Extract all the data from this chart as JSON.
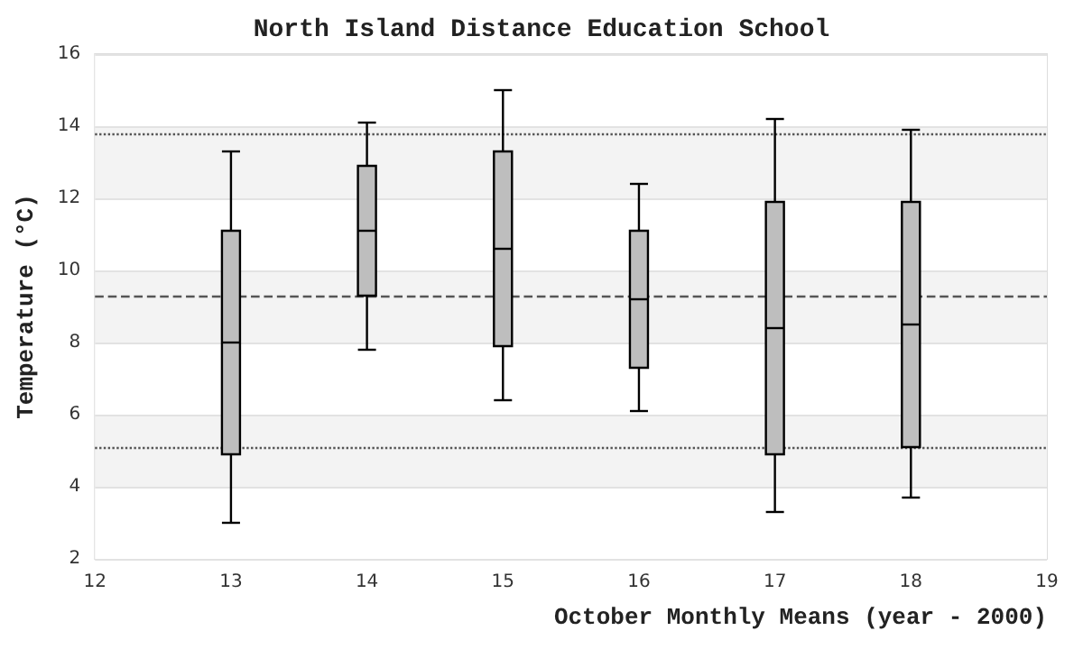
{
  "chart_data": {
    "type": "box",
    "title": "North Island Distance Education School",
    "xlabel": "October Monthly Means (year - 2000)",
    "ylabel": "Temperature (°C)",
    "x": [
      13,
      14,
      15,
      16,
      17,
      18
    ],
    "boxes": [
      {
        "low": 3.0,
        "q1": 4.9,
        "median": 8.0,
        "q3": 11.1,
        "high": 13.3
      },
      {
        "low": 7.8,
        "q1": 9.3,
        "median": 11.1,
        "q3": 12.9,
        "high": 14.1
      },
      {
        "low": 6.4,
        "q1": 7.9,
        "median": 10.6,
        "q3": 13.3,
        "high": 15.0
      },
      {
        "low": 6.1,
        "q1": 7.3,
        "median": 9.2,
        "q3": 11.1,
        "high": 12.4
      },
      {
        "low": 3.3,
        "q1": 4.9,
        "median": 8.4,
        "q3": 11.9,
        "high": 14.2
      },
      {
        "low": 3.7,
        "q1": 5.1,
        "median": 8.5,
        "q3": 11.9,
        "high": 13.9
      }
    ],
    "color": "#bebebe",
    "xlim": [
      12,
      19
    ],
    "xticks": [
      12,
      13,
      14,
      15,
      16,
      17,
      18,
      19
    ],
    "ylim": [
      2,
      16
    ],
    "yticks": [
      2,
      4,
      6,
      8,
      10,
      12,
      14,
      16
    ],
    "ref_lines": [
      {
        "axis": "y",
        "value": 13.8,
        "line_style": "dotted",
        "color": "#555555"
      },
      {
        "axis": "y",
        "value": 9.3,
        "line_style": "dashed",
        "color": "#555555"
      },
      {
        "axis": "y",
        "value": 5.1,
        "line_style": "dotted",
        "color": "#555555"
      }
    ],
    "grid": "y"
  }
}
